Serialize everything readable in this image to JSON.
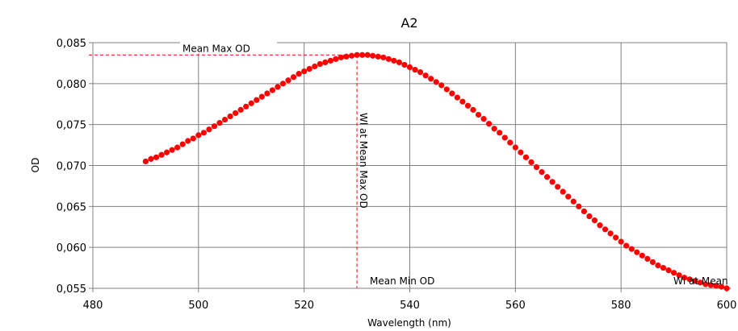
{
  "chart_data": {
    "type": "scatter",
    "title": "A2",
    "xlabel": "Wavelength (nm)",
    "ylabel": "OD",
    "xlim": [
      480,
      600
    ],
    "ylim": [
      0.055,
      0.085
    ],
    "x_ticks": [
      480,
      500,
      520,
      540,
      560,
      580,
      600
    ],
    "x_tick_labels": [
      "480",
      "500",
      "520",
      "540",
      "560",
      "580",
      "600"
    ],
    "y_ticks": [
      0.055,
      0.06,
      0.065,
      0.07,
      0.075,
      0.08,
      0.085
    ],
    "y_tick_labels": [
      "0,055",
      "0,060",
      "0,065",
      "0,070",
      "0,075",
      "0,080",
      "0,085"
    ],
    "grid": true,
    "marker_color": "#ff0000",
    "reference_color": "#ff0000",
    "annotations": {
      "mean_max_od": {
        "label": "Mean Max OD",
        "value": 0.0835
      },
      "mean_min_od": {
        "label": "Mean Min OD",
        "value": 0.055
      },
      "wl_at_mean_max": {
        "label": "Wl at Mean Max OD",
        "x": 530
      },
      "wl_at_mean_min": {
        "label": "Wl at Mean",
        "x": 600
      }
    },
    "series": [
      {
        "x": [
          490,
          491,
          492,
          493,
          494,
          495,
          496,
          497,
          498,
          499,
          500,
          501,
          502,
          503,
          504,
          505,
          506,
          507,
          508,
          509,
          510,
          511,
          512,
          513,
          514,
          515,
          516,
          517,
          518,
          519,
          520,
          521,
          522,
          523,
          524,
          525,
          526,
          527,
          528,
          529,
          530,
          531,
          532,
          533,
          534,
          535,
          536,
          537,
          538,
          539,
          540,
          541,
          542,
          543,
          544,
          545,
          546,
          547,
          548,
          549,
          550,
          551,
          552,
          553,
          554,
          555,
          556,
          557,
          558,
          559,
          560,
          561,
          562,
          563,
          564,
          565,
          566,
          567,
          568,
          569,
          570,
          571,
          572,
          573,
          574,
          575,
          576,
          577,
          578,
          579,
          580,
          581,
          582,
          583,
          584,
          585,
          586,
          587,
          588,
          589,
          590,
          591,
          592,
          593,
          594,
          595,
          596,
          597,
          598,
          599,
          600
        ],
        "y": [
          0.0705,
          0.0708,
          0.071,
          0.0713,
          0.0716,
          0.0719,
          0.0722,
          0.0726,
          0.073,
          0.0733,
          0.0737,
          0.074,
          0.0744,
          0.0748,
          0.0752,
          0.0756,
          0.076,
          0.0764,
          0.0768,
          0.0772,
          0.0776,
          0.078,
          0.0784,
          0.0788,
          0.0792,
          0.0796,
          0.08,
          0.0804,
          0.0808,
          0.0812,
          0.0815,
          0.0818,
          0.0821,
          0.0824,
          0.0826,
          0.0828,
          0.083,
          0.0832,
          0.0833,
          0.0834,
          0.0835,
          0.0835,
          0.0835,
          0.0834,
          0.0833,
          0.0832,
          0.083,
          0.0828,
          0.0826,
          0.0823,
          0.082,
          0.0817,
          0.0814,
          0.081,
          0.0806,
          0.0802,
          0.0798,
          0.0793,
          0.0788,
          0.0783,
          0.0778,
          0.0773,
          0.0768,
          0.0762,
          0.0757,
          0.0751,
          0.0745,
          0.074,
          0.0734,
          0.0728,
          0.0722,
          0.0716,
          0.071,
          0.0704,
          0.0698,
          0.0692,
          0.0686,
          0.068,
          0.0674,
          0.0668,
          0.0662,
          0.0656,
          0.065,
          0.0644,
          0.0638,
          0.0633,
          0.0627,
          0.0622,
          0.0617,
          0.0612,
          0.0607,
          0.0602,
          0.0598,
          0.0594,
          0.059,
          0.0586,
          0.0582,
          0.0578,
          0.0575,
          0.0572,
          0.0569,
          0.0566,
          0.0563,
          0.0561,
          0.0559,
          0.0557,
          0.0555,
          0.0554,
          0.0553,
          0.0552,
          0.055
        ]
      }
    ]
  }
}
